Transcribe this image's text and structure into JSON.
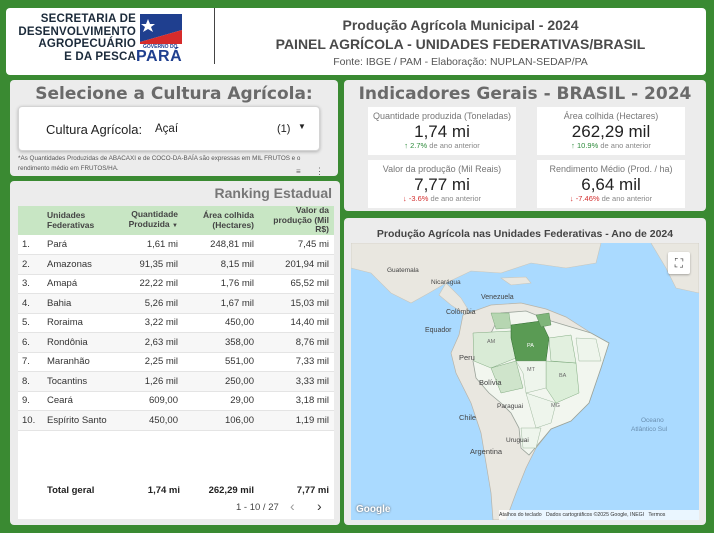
{
  "header": {
    "logo_lines": [
      "SECRETARIA DE",
      "DESENVOLVIMENTO",
      "AGROPECUÁRIO",
      "E DA PESCA"
    ],
    "logo_small": "GOVERNO DO",
    "logo_state": "PARÁ",
    "title": "Produção Agrícola Municipal - 2024",
    "subtitle": "PAINEL AGRÍCOLA - UNIDADES FEDERATIVAS/BRASIL",
    "source": "Fonte: IBGE / PAM - Elaboração: NUPLAN-SEDAP/PA"
  },
  "selector": {
    "heading": "Selecione a Cultura Agrícola:",
    "label": "Cultura Agrícola:",
    "value": "Açaí",
    "count": "(1)",
    "note": "*As Quantidades Produzidas de ABACAXI e de COCO-DA-BAÍA são expressas em MIL FRUTOS e o rendimento médio em FRUTOS/HA."
  },
  "indicators": {
    "heading": "Indicadores Gerais - BRASIL - 2024",
    "cards": [
      {
        "label": "Quantidade produzida (Toneladas)",
        "value": "1,74 mi",
        "delta": "2.7%",
        "delta_text": "de ano anterior",
        "trend": "up"
      },
      {
        "label": "Área colhida (Hectares)",
        "value": "262,29 mil",
        "delta": "10.9%",
        "delta_text": "de ano anterior",
        "trend": "up"
      },
      {
        "label": "Valor da produção (Mil Reais)",
        "value": "7,77 mi",
        "delta": "-3.6%",
        "delta_text": "de ano anterior",
        "trend": "down"
      },
      {
        "label": "Rendimento Médio (Prod. / ha)",
        "value": "6,64 mil",
        "delta": "-7.46%",
        "delta_text": "de ano anterior",
        "trend": "down"
      }
    ]
  },
  "ranking": {
    "heading": "Ranking Estadual",
    "columns": [
      "Unidades Federativas",
      "Quantidade Produzida",
      "Área colhida (Hectares)",
      "Valor da produção (Mil R$)"
    ],
    "rows": [
      {
        "n": "1.",
        "uf": "Pará",
        "qty": "1,61 mi",
        "area": "248,81 mil",
        "value": "7,45 mi"
      },
      {
        "n": "2.",
        "uf": "Amazonas",
        "qty": "91,35 mil",
        "area": "8,15 mil",
        "value": "201,94 mil"
      },
      {
        "n": "3.",
        "uf": "Amapá",
        "qty": "22,22 mil",
        "area": "1,76 mil",
        "value": "65,52 mil"
      },
      {
        "n": "4.",
        "uf": "Bahia",
        "qty": "5,26 mil",
        "area": "1,67 mil",
        "value": "15,03 mil"
      },
      {
        "n": "5.",
        "uf": "Roraima",
        "qty": "3,22 mil",
        "area": "450,00",
        "value": "14,40 mil"
      },
      {
        "n": "6.",
        "uf": "Rondônia",
        "qty": "2,63 mil",
        "area": "358,00",
        "value": "8,76 mil"
      },
      {
        "n": "7.",
        "uf": "Maranhão",
        "qty": "2,25 mil",
        "area": "551,00",
        "value": "7,33 mil"
      },
      {
        "n": "8.",
        "uf": "Tocantins",
        "qty": "1,26 mil",
        "area": "250,00",
        "value": "3,33 mil"
      },
      {
        "n": "9.",
        "uf": "Ceará",
        "qty": "609,00",
        "area": "29,00",
        "value": "3,18 mil"
      },
      {
        "n": "10.",
        "uf": "Espírito Santo",
        "qty": "450,00",
        "area": "106,00",
        "value": "1,19 mil"
      }
    ],
    "total": {
      "label": "Total geral",
      "qty": "1,74 mi",
      "area": "262,29 mil",
      "value": "7,77 mi"
    },
    "pagination": "1 - 10 / 27"
  },
  "map": {
    "title": "Produção Agrícola nas Unidades Federativas - Ano de 2024",
    "labels": {
      "guatemala": "Guatemala",
      "nicaragua": "Nicarágua",
      "venezuela": "Venezuela",
      "colombia": "Colômbia",
      "equador": "Equador",
      "peru": "Peru",
      "bolivia": "Bolívia",
      "paraguai": "Paraguai",
      "chile": "Chile",
      "argentina": "Argentina",
      "uruguai": "Uruguai",
      "oceano": "Oceano",
      "atlantico": "Atlântico Sul",
      "pa": "PA",
      "am": "AM",
      "mt": "MT",
      "ba": "BA",
      "mg": "MG"
    },
    "google": "Google",
    "footer": [
      "Atalhos do teclado",
      "Dados cartográficos ©2025 Google, INEGI",
      "Termos"
    ]
  }
}
